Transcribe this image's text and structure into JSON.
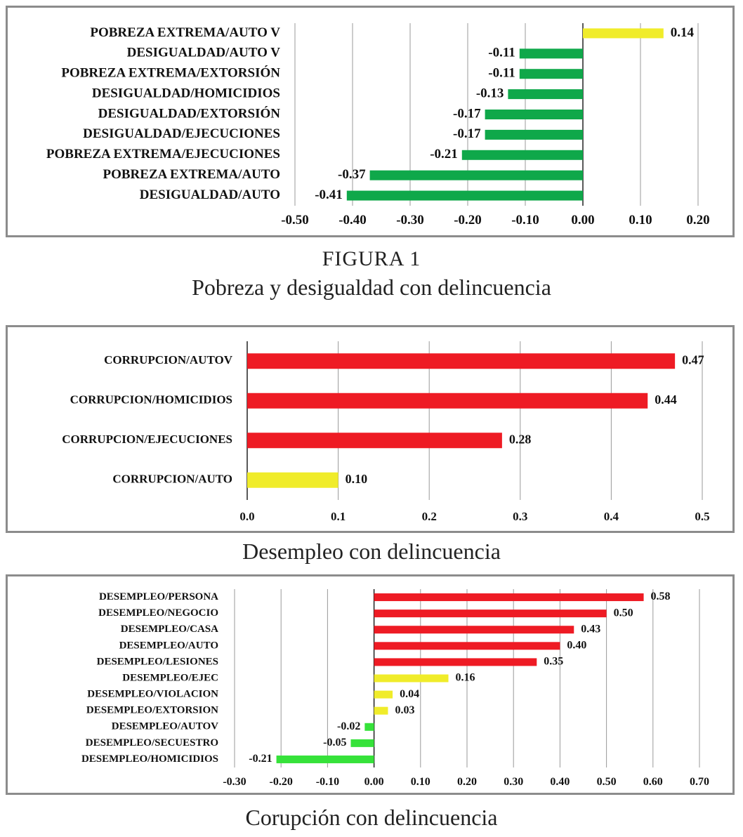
{
  "colors": {
    "green": "#0fa84a",
    "yellow": "#f0ec2a",
    "red": "#ee1b24",
    "lightgreen": "#36e23a",
    "grid": "#999999",
    "axis": "#222222"
  },
  "chart_data": [
    {
      "type": "bar",
      "orientation": "horizontal",
      "categories": [
        "POBREZA EXTREMA/AUTO V",
        "DESIGUALDAD/AUTO V",
        "POBREZA EXTREMA/EXTORSIÓN",
        "DESIGUALDAD/HOMICIDIOS",
        "DESIGUALDAD/EXTORSIÓN",
        "DESIGUALDAD/EJECUCIONES",
        "POBREZA EXTREMA/EJECUCIONES",
        "POBREZA EXTREMA/AUTO",
        "DESIGUALDAD/AUTO"
      ],
      "values": [
        0.14,
        -0.11,
        -0.11,
        -0.13,
        -0.17,
        -0.17,
        -0.21,
        -0.37,
        -0.41
      ],
      "value_labels": [
        "0.14",
        "-0.11",
        "-0.11",
        "-0.13",
        "-0.17",
        "-0.17",
        "-0.21",
        "-0.37",
        "-0.41"
      ],
      "bar_colors": [
        "yellow",
        "green",
        "green",
        "green",
        "green",
        "green",
        "green",
        "green",
        "green"
      ],
      "xlim": [
        -0.5,
        0.2
      ],
      "xticks": [
        "-0.50",
        "-0.40",
        "-0.30",
        "-0.20",
        "-0.10",
        "0.00",
        "0.10",
        "0.20"
      ],
      "grid": true,
      "legend": "none"
    },
    {
      "type": "bar",
      "orientation": "horizontal",
      "categories": [
        "CORRUPCION/AUTOV",
        "CORRUPCION/HOMICIDIOS",
        "CORRUPCION/EJECUCIONES",
        "CORRUPCION/AUTO"
      ],
      "values": [
        0.47,
        0.44,
        0.28,
        0.1
      ],
      "value_labels": [
        "0.47",
        "0.44",
        "0.28",
        "0.10"
      ],
      "bar_colors": [
        "red",
        "red",
        "red",
        "yellow"
      ],
      "xlim": [
        0,
        0.5
      ],
      "xticks": [
        "0.0",
        "0.1",
        "0.2",
        "0.3",
        "0.4",
        "0.5"
      ],
      "grid": true,
      "legend": "none"
    },
    {
      "type": "bar",
      "orientation": "horizontal",
      "categories": [
        "DESEMPLEO/PERSONA",
        "DESEMPLEO/NEGOCIO",
        "DESEMPLEO/CASA",
        "DESEMPLEO/AUTO",
        "DESEMPLEO/LESIONES",
        "DESEMPLEO/EJEC",
        "DESEMPLEO/VIOLACION",
        "DESEMPLEO/EXTORSION",
        "DESEMPLEO/AUTOV",
        "DESEMPLEO/SECUESTRO",
        "DESEMPLEO/HOMICIDIOS"
      ],
      "values": [
        0.58,
        0.5,
        0.43,
        0.4,
        0.35,
        0.16,
        0.04,
        0.03,
        -0.02,
        -0.05,
        -0.21
      ],
      "value_labels": [
        "0.58",
        "0.50",
        "0.43",
        "0.40",
        "0.35",
        "0.16",
        "0.04",
        "0.03",
        "-0.02",
        "-0.05",
        "-0.21"
      ],
      "bar_colors": [
        "red",
        "red",
        "red",
        "red",
        "red",
        "yellow",
        "yellow",
        "yellow",
        "lightgreen",
        "lightgreen",
        "lightgreen"
      ],
      "xlim": [
        -0.3,
        0.7
      ],
      "xticks": [
        "-0.30",
        "-0.20",
        "-0.10",
        "0.00",
        "0.10",
        "0.20",
        "0.30",
        "0.40",
        "0.50",
        "0.60",
        "0.70"
      ],
      "grid": true,
      "legend": "none"
    }
  ],
  "captions": {
    "figure_label": "FIGURA 1",
    "figure_title": "Pobreza y desigualdad con delincuencia",
    "chart2_caption": "Desempleo con delincuencia",
    "chart3_caption": "Corupción con delincuencia"
  }
}
